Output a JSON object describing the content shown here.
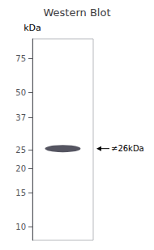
{
  "chart_data": {
    "type": "scatter",
    "title": "Western Blot",
    "ylabel": "kDa",
    "values": [
      25.5
    ],
    "color": "#2a2a3a",
    "log": "y",
    "ylim": [
      8.5,
      95
    ],
    "yticks": [
      75,
      50,
      37,
      25,
      20,
      15,
      10
    ],
    "grid": false,
    "tick_labels": "y",
    "annotations": [
      {
        "text": "≠26kDa",
        "y": 25.5
      }
    ]
  }
}
